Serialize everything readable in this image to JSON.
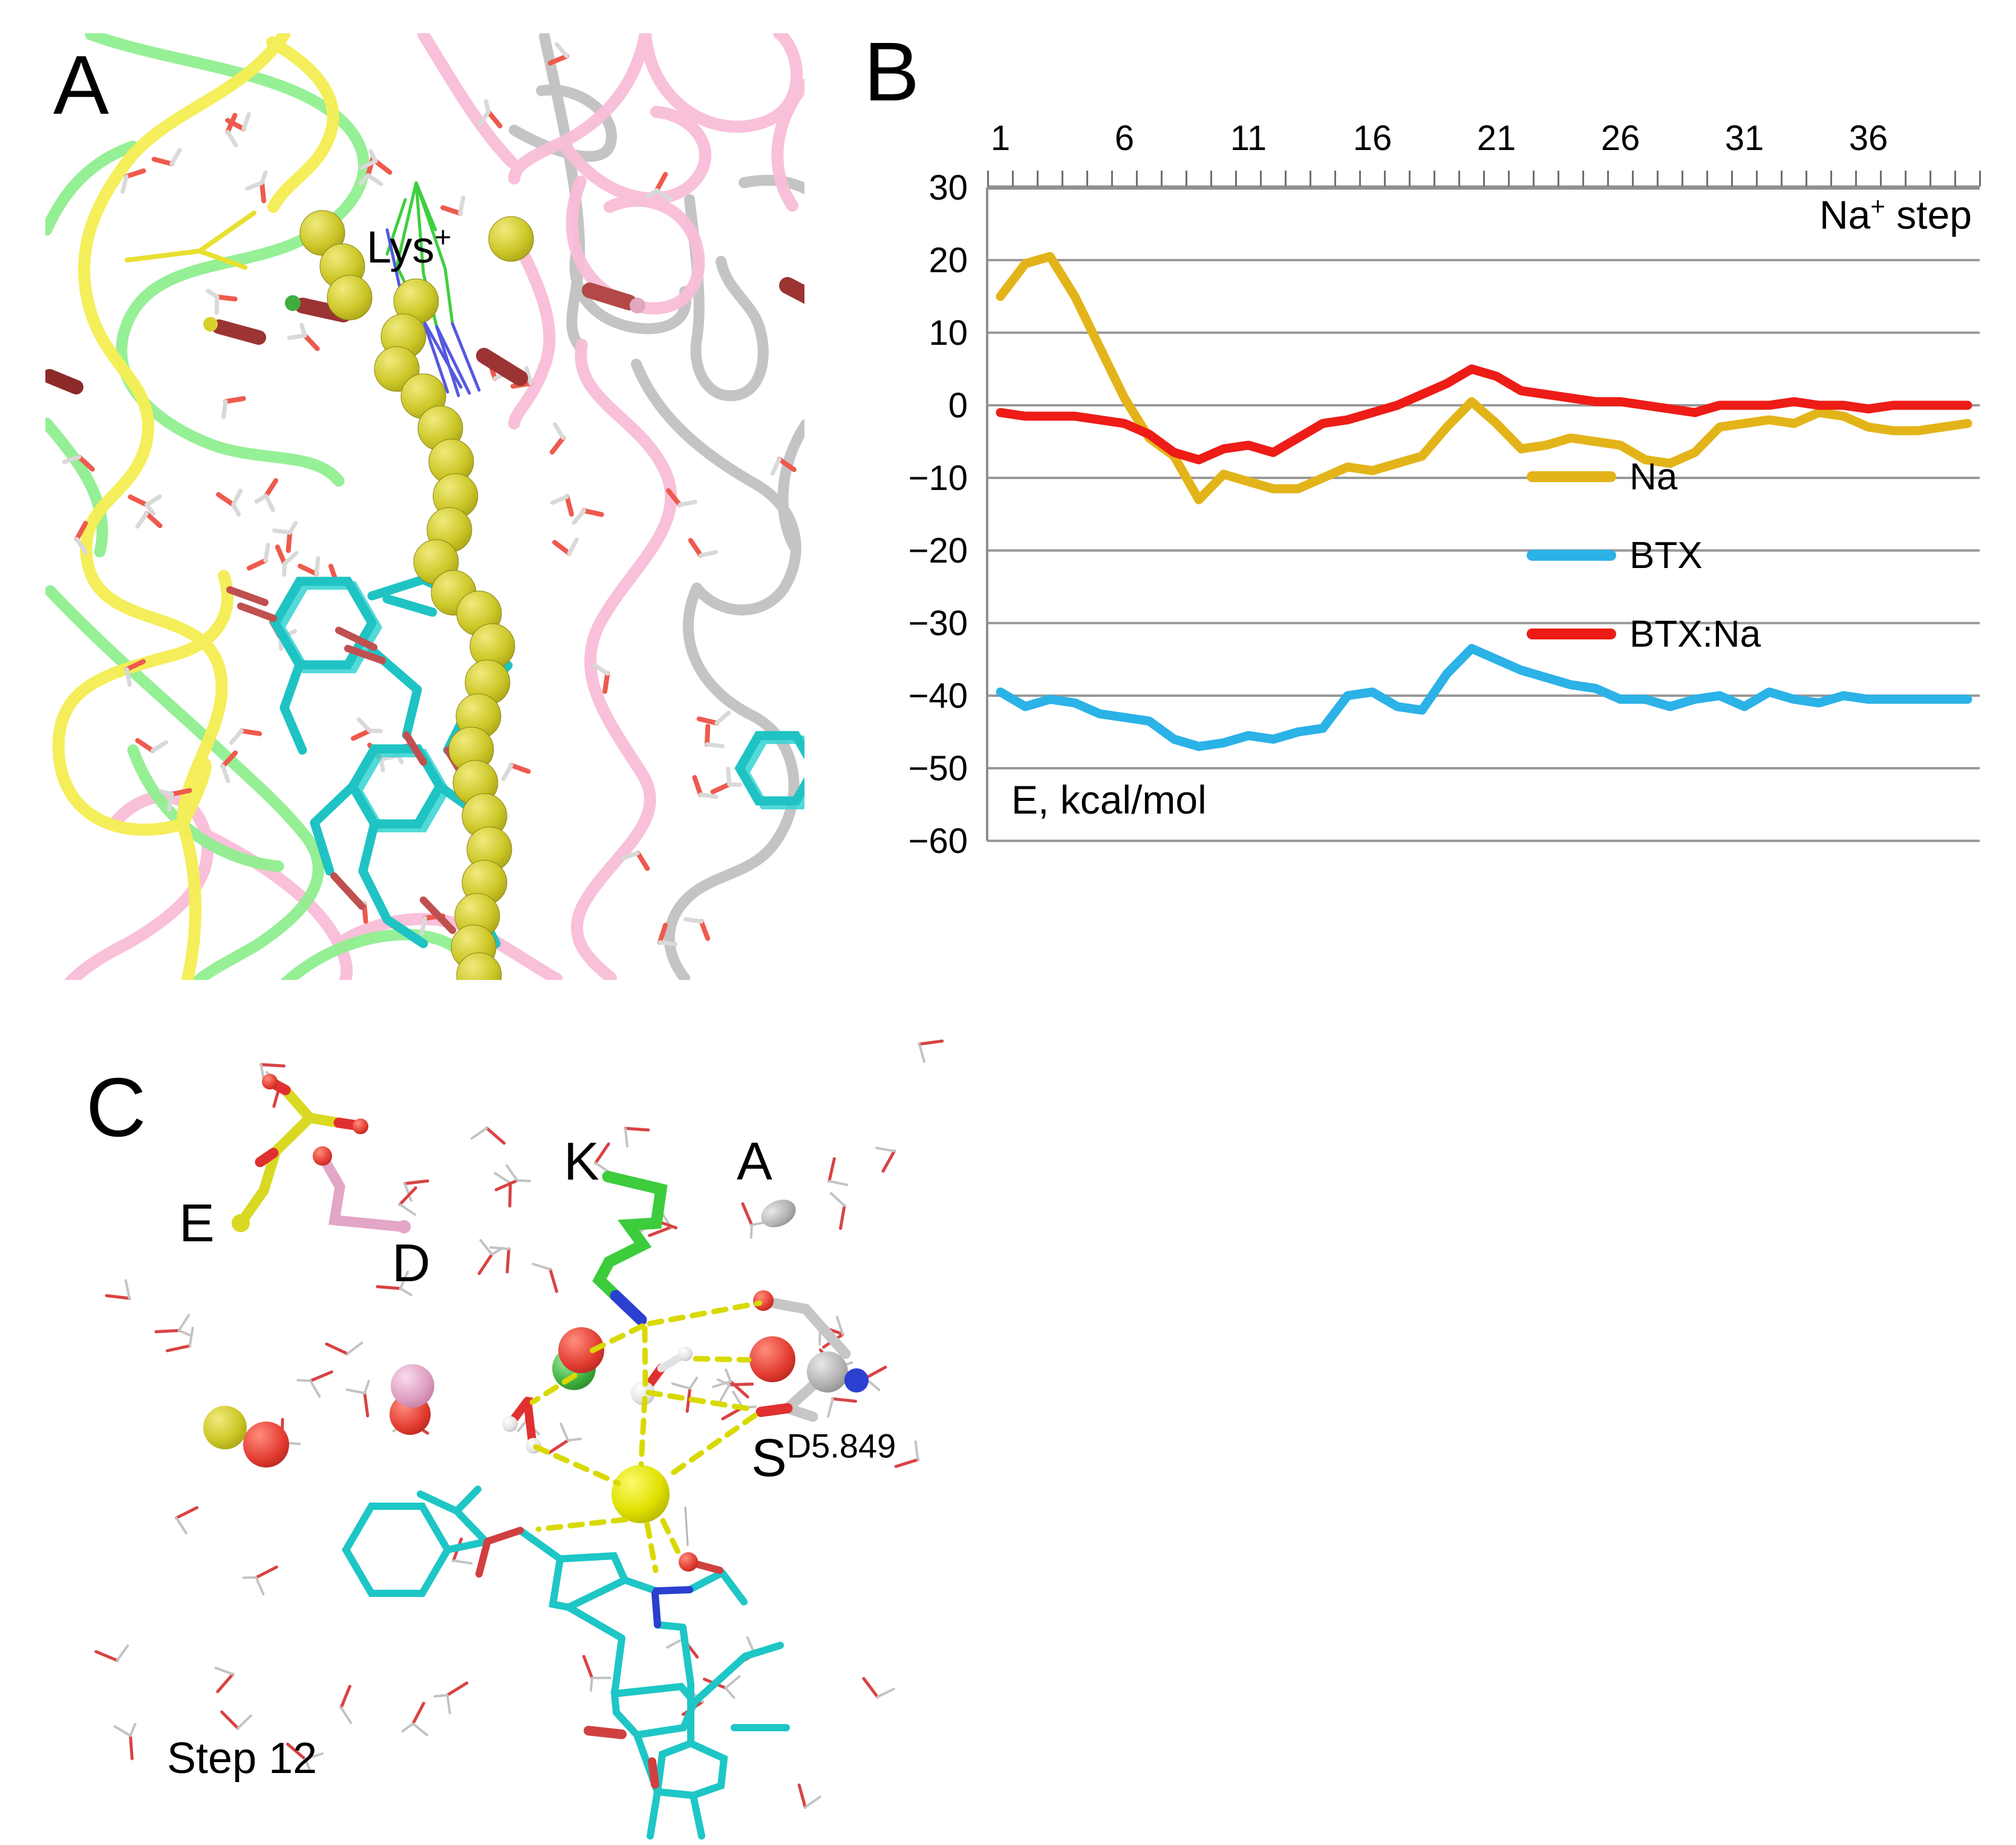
{
  "panelA": {
    "label": "A",
    "annotation": {
      "base": "Lys",
      "sup": "+"
    }
  },
  "panelB": {
    "label": "B",
    "axis_title": {
      "base": "Na",
      "sup": "+",
      "rest": " step"
    },
    "y_axis_title": "E, kcal/mol"
  },
  "panelC": {
    "label": "C",
    "residue_glu": "E",
    "residue_asp": "D",
    "residue_lys": "K",
    "residue_ala": "A",
    "ser_label": {
      "base": "S",
      "sup": "D5.849"
    },
    "step_label": "Step 12"
  },
  "colors": {
    "background": "#ffffff",
    "grid": "#9a9a9a",
    "axis": "#8f8f8f",
    "tick": "#6f6f6f",
    "text": "#000000",
    "ribbon_yellow": "#f4ee55",
    "ribbon_green": "#90ef90",
    "ribbon_pink": "#f9bdd7",
    "ribbon_gray": "#bfbfbf",
    "sphere_yellow": "#cdc829",
    "stick_cyan": "#1fc3c3",
    "oxygen_red": "#e23b30",
    "nitrogen_blue": "#2b3fd0",
    "hbond_yellow": "#d9d900"
  },
  "chart_data": {
    "type": "line",
    "title": "",
    "xlabel": "Na+ step",
    "ylabel": "E, kcal/mol",
    "x": [
      1,
      2,
      3,
      4,
      5,
      6,
      7,
      8,
      9,
      10,
      11,
      12,
      13,
      14,
      15,
      16,
      17,
      18,
      19,
      20,
      21,
      22,
      23,
      24,
      25,
      26,
      27,
      28,
      29,
      30,
      31,
      32,
      33,
      34,
      35,
      36,
      37,
      38,
      39,
      40
    ],
    "x_ticks": [
      1,
      6,
      11,
      16,
      21,
      26,
      31,
      36
    ],
    "y_ticks": [
      30,
      20,
      10,
      0,
      -10,
      -20,
      -30,
      -40,
      -50,
      -60
    ],
    "ylim": [
      -60,
      30
    ],
    "xlim": [
      0.5,
      40.5
    ],
    "grid": true,
    "legend_position": "center-right",
    "series": [
      {
        "name": "Na",
        "color": "#E3B419",
        "values": [
          15,
          19.5,
          20.5,
          15,
          8,
          1,
          -4.5,
          -7,
          -13,
          -9.5,
          -10.5,
          -11.5,
          -11.5,
          -10,
          -8.5,
          -9,
          -8,
          -7,
          -3,
          0.5,
          -2.5,
          -6,
          -5.5,
          -4.5,
          -5,
          -5.5,
          -7.5,
          -8,
          -6.5,
          -3,
          -2.5,
          -2,
          -2.5,
          -1,
          -1.5,
          -3,
          -3.5,
          -3.5,
          -3,
          -2.5
        ]
      },
      {
        "name": "BTX",
        "color": "#2BB2E7",
        "values": [
          -39.5,
          -41.5,
          -40.5,
          -41,
          -42.5,
          -43,
          -43.5,
          -46,
          -47,
          -46.5,
          -45.5,
          -46,
          -45,
          -44.5,
          -40,
          -39.5,
          -41.5,
          -42,
          -37,
          -33.5,
          -35,
          -36.5,
          -37.5,
          -38.5,
          -39,
          -40.5,
          -40.5,
          -41.5,
          -40.5,
          -40,
          -41.5,
          -39.5,
          -40.5,
          -41,
          -40,
          -40.5,
          -40.5,
          -40.5,
          -40.5,
          -40.5
        ]
      },
      {
        "name": "BTX:Na",
        "color": "#ED1C16",
        "values": [
          -1,
          -1.5,
          -1.5,
          -1.5,
          -2,
          -2.5,
          -4,
          -6.5,
          -7.5,
          -6,
          -5.5,
          -6.5,
          -4.5,
          -2.5,
          -2,
          -1,
          0,
          1.5,
          3,
          5,
          4,
          2,
          1.5,
          1,
          0.5,
          0.5,
          0,
          -0.5,
          -1,
          0,
          0,
          0,
          0.5,
          0,
          0,
          -0.5,
          0,
          0,
          0,
          0
        ]
      }
    ]
  }
}
